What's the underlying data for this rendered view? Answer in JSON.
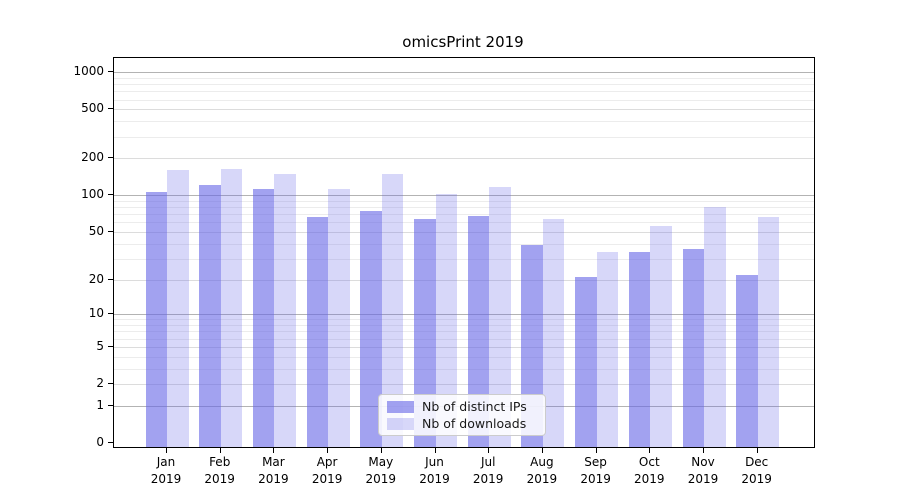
{
  "title": "omicsPrint 2019",
  "y_axis": {
    "ticks": [
      0,
      1,
      2,
      5,
      10,
      20,
      50,
      100,
      200,
      500,
      1000
    ],
    "minor_gridlines": [
      3,
      4,
      6,
      7,
      8,
      9,
      30,
      40,
      60,
      70,
      80,
      90,
      300,
      400,
      600,
      700,
      800,
      900
    ],
    "major_gridline_values": [
      1,
      10,
      100,
      1000
    ]
  },
  "x_axis": {
    "labels_line2": "2019",
    "months": [
      "Jan",
      "Feb",
      "Mar",
      "Apr",
      "May",
      "Jun",
      "Jul",
      "Aug",
      "Sep",
      "Oct",
      "Nov",
      "Dec"
    ]
  },
  "legend": {
    "items": [
      {
        "label": "Nb of distinct IPs",
        "color": "#6464e6",
        "opacity": 0.6
      },
      {
        "label": "Nb of downloads",
        "color": "#6464e6",
        "opacity": 0.26
      }
    ]
  },
  "style": {
    "major_grid_color": "#b3b3b3",
    "tick_grid_color": "#dcdcdc",
    "minor_grid_color": "#ececec"
  },
  "chart_data": {
    "type": "bar",
    "title": "omicsPrint 2019",
    "yscale": "symlog",
    "grid": true,
    "legend_position": "lower center",
    "ylim": [
      0,
      1000
    ],
    "y_ticks": [
      0,
      1,
      2,
      5,
      10,
      20,
      50,
      100,
      200,
      500,
      1000
    ],
    "categories": [
      "Jan 2019",
      "Feb 2019",
      "Mar 2019",
      "Apr 2019",
      "May 2019",
      "Jun 2019",
      "Jul 2019",
      "Aug 2019",
      "Sep 2019",
      "Oct 2019",
      "Nov 2019",
      "Dec 2019"
    ],
    "series": [
      {
        "name": "Nb of distinct IPs",
        "values": [
          106,
          122,
          112,
          67,
          75,
          64,
          68,
          39,
          21,
          34,
          36,
          22
        ]
      },
      {
        "name": "Nb of downloads",
        "values": [
          162,
          164,
          148,
          113,
          149,
          102,
          118,
          64,
          34,
          56,
          80,
          66
        ]
      }
    ]
  }
}
